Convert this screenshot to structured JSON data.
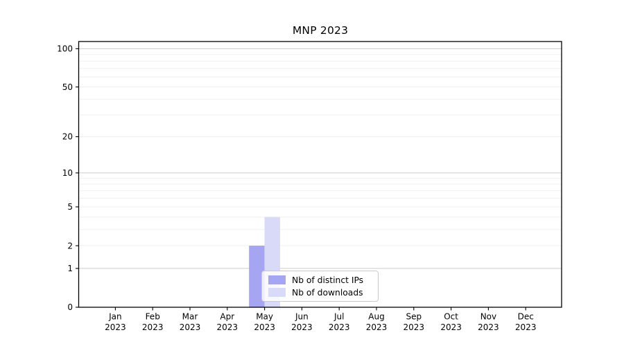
{
  "chart_data": {
    "type": "bar",
    "title": "MNP 2023",
    "categories": [
      "Jan",
      "Feb",
      "Mar",
      "Apr",
      "May",
      "Jun",
      "Jul",
      "Aug",
      "Sep",
      "Oct",
      "Nov",
      "Dec"
    ],
    "category_year": "2023",
    "series": [
      {
        "name": "Nb of distinct IPs",
        "color": "#a5a5f1",
        "values": [
          0,
          0,
          0,
          0,
          2,
          0,
          0,
          0,
          0,
          0,
          0,
          0
        ]
      },
      {
        "name": "Nb of downloads",
        "color": "#d9d9f8",
        "values": [
          0,
          0,
          0,
          0,
          4,
          0,
          0,
          0,
          0,
          0,
          0,
          0
        ]
      }
    ],
    "xlabel": "",
    "ylabel": "",
    "yscale": "symlog-ln(1+x)",
    "ylim": [
      0,
      113.8
    ],
    "yticks": [
      0,
      1,
      2,
      5,
      10,
      20,
      50,
      100
    ],
    "yticks_minor": [
      2,
      3,
      4,
      5,
      6,
      7,
      8,
      9,
      20,
      30,
      40,
      50,
      60,
      70,
      80,
      90
    ],
    "grid": "horizontal",
    "grid_major_color": "#cbcbcb",
    "grid_minor_color": "#efefef",
    "axis_color": "#000000",
    "legend_position": "lower center inside plot"
  }
}
